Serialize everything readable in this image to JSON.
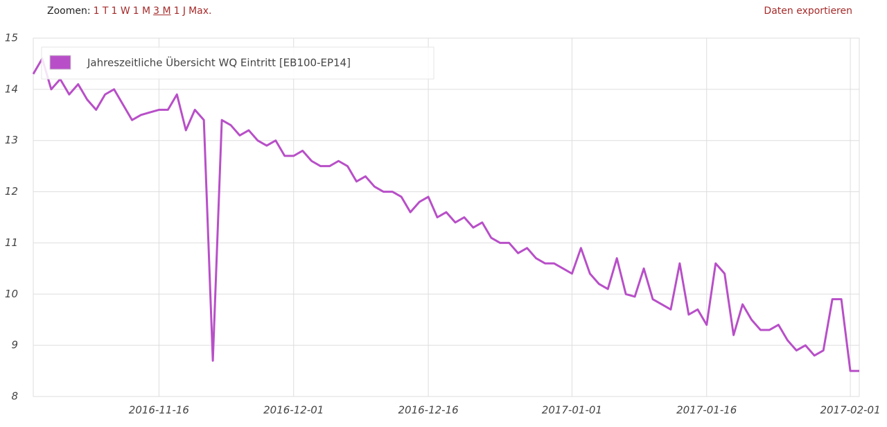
{
  "header": {
    "zoom_label": "Zoomen:",
    "zoom_options": [
      "1 T",
      "1 W",
      "1 M",
      "3 M",
      "1 J",
      "Max."
    ],
    "export": "Daten exportieren"
  },
  "chart_data": {
    "type": "line",
    "x": [
      "2016-11-02",
      "2016-11-03",
      "2016-11-04",
      "2016-11-05",
      "2016-11-06",
      "2016-11-07",
      "2016-11-08",
      "2016-11-09",
      "2016-11-10",
      "2016-11-11",
      "2016-11-12",
      "2016-11-13",
      "2016-11-14",
      "2016-11-15",
      "2016-11-16",
      "2016-11-17",
      "2016-11-18",
      "2016-11-19",
      "2016-11-20",
      "2016-11-21",
      "2016-11-22",
      "2016-11-23",
      "2016-11-24",
      "2016-11-25",
      "2016-11-26",
      "2016-11-27",
      "2016-11-28",
      "2016-11-29",
      "2016-11-30",
      "2016-12-01",
      "2016-12-02",
      "2016-12-03",
      "2016-12-04",
      "2016-12-05",
      "2016-12-06",
      "2016-12-07",
      "2016-12-08",
      "2016-12-09",
      "2016-12-10",
      "2016-12-11",
      "2016-12-12",
      "2016-12-13",
      "2016-12-14",
      "2016-12-15",
      "2016-12-16",
      "2016-12-17",
      "2016-12-18",
      "2016-12-19",
      "2016-12-20",
      "2016-12-21",
      "2016-12-22",
      "2016-12-23",
      "2016-12-24",
      "2016-12-25",
      "2016-12-26",
      "2016-12-27",
      "2016-12-28",
      "2016-12-29",
      "2016-12-30",
      "2016-12-31",
      "2017-01-01",
      "2017-01-02",
      "2017-01-03",
      "2017-01-04",
      "2017-01-05",
      "2017-01-06",
      "2017-01-07",
      "2017-01-08",
      "2017-01-09",
      "2017-01-10",
      "2017-01-11",
      "2017-01-12",
      "2017-01-13",
      "2017-01-14",
      "2017-01-15",
      "2017-01-16",
      "2017-01-17",
      "2017-01-18",
      "2017-01-19",
      "2017-01-20",
      "2017-01-21",
      "2017-01-22",
      "2017-01-23",
      "2017-01-24",
      "2017-01-25",
      "2017-01-26",
      "2017-01-27",
      "2017-01-28",
      "2017-01-29",
      "2017-01-30",
      "2017-01-31",
      "2017-02-01",
      "2017-02-02"
    ],
    "series": [
      {
        "name": "Jahreszeitliche Übersicht WQ Eintritt [EB100-EP14]",
        "color": "#b84fc8",
        "values": [
          14.3,
          14.6,
          14.0,
          14.2,
          13.9,
          14.1,
          13.8,
          13.6,
          13.9,
          14.0,
          13.7,
          13.4,
          13.5,
          13.55,
          13.6,
          13.6,
          13.9,
          13.2,
          13.6,
          13.4,
          8.7,
          13.4,
          13.3,
          13.1,
          13.2,
          13.0,
          12.9,
          13.0,
          12.7,
          12.7,
          12.8,
          12.6,
          12.5,
          12.5,
          12.6,
          12.5,
          12.2,
          12.3,
          12.1,
          12.0,
          12.0,
          11.9,
          11.6,
          11.8,
          11.9,
          11.5,
          11.6,
          11.4,
          11.5,
          11.3,
          11.4,
          11.1,
          11.0,
          11.0,
          10.8,
          10.9,
          10.7,
          10.6,
          10.6,
          10.5,
          10.4,
          10.9,
          10.4,
          10.2,
          10.1,
          10.7,
          10.0,
          9.95,
          10.5,
          9.9,
          9.8,
          9.7,
          10.6,
          9.6,
          9.7,
          9.4,
          10.6,
          10.4,
          9.2,
          9.8,
          9.5,
          9.3,
          9.3,
          9.4,
          9.1,
          8.9,
          9.0,
          8.8,
          8.9,
          9.9,
          9.9,
          8.5,
          8.5
        ]
      }
    ],
    "xlim": [
      "2016-11-02",
      "2017-02-02"
    ],
    "xticks": [
      "2016-11-16",
      "2016-12-01",
      "2016-12-16",
      "2017-01-01",
      "2017-01-16",
      "2017-02-01"
    ],
    "ylim": [
      8,
      15
    ],
    "yticks": [
      8,
      9,
      10,
      11,
      12,
      13,
      14,
      15
    ],
    "grid": true,
    "legend": "top-left"
  }
}
